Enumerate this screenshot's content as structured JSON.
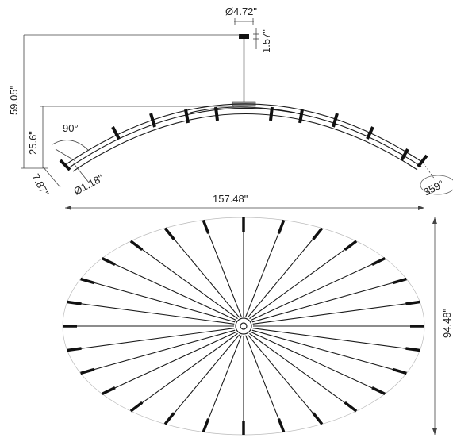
{
  "dimensions": {
    "canopy_diameter": "Ø4.72\"",
    "canopy_height": "1.57\"",
    "overall_height": "59.05\"",
    "fixture_height": "25.6\"",
    "tilt_angle": "90°",
    "rod_diameter": "Ø1.18\"",
    "tip_length": "7.87\"",
    "rotation": "359°",
    "overall_width": "157.48\"",
    "plan_depth": "94.48\""
  },
  "plan_view": {
    "arm_count": 28
  }
}
